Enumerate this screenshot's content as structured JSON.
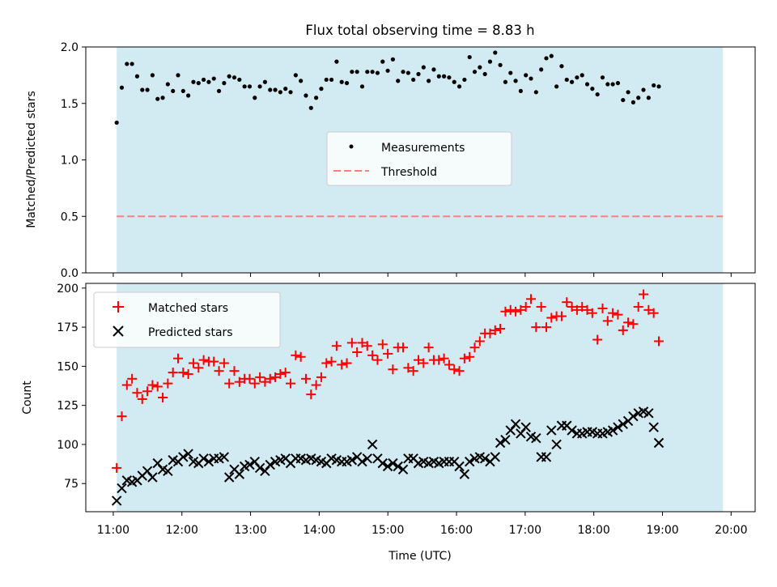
{
  "title": "Flux total observing time = 8.83 h",
  "colors": {
    "shade": "#add8e6",
    "measurement": "#000000",
    "threshold": "#ff7f7f",
    "matched": "#ff0000",
    "predicted": "#000000"
  },
  "chart_data": [
    {
      "type": "scatter",
      "ylabel": "Matched/Predicted stars",
      "ylim": [
        0,
        2
      ],
      "xlim_hours": [
        10.6,
        20.35
      ],
      "yticks": [
        "0.0",
        "0.5",
        "1.0",
        "1.5",
        "2.0"
      ],
      "shaded_range_hours": [
        11.05,
        19.88
      ],
      "threshold": 0.5,
      "legend": {
        "position": "center",
        "entries": [
          "Measurements",
          "Threshold"
        ]
      },
      "x_start_hours": 11.05,
      "x_step_hours": 0.0745,
      "series": [
        {
          "name": "Measurements",
          "marker": "dot",
          "values": [
            1.33,
            1.64,
            1.85,
            1.85,
            1.74,
            1.62,
            1.62,
            1.75,
            1.54,
            1.55,
            1.67,
            1.61,
            1.75,
            1.61,
            1.57,
            1.69,
            1.68,
            1.71,
            1.69,
            1.72,
            1.61,
            1.68,
            1.74,
            1.73,
            1.71,
            1.65,
            1.65,
            1.55,
            1.65,
            1.69,
            1.62,
            1.62,
            1.6,
            1.63,
            1.6,
            1.75,
            1.7,
            1.57,
            1.46,
            1.55,
            1.63,
            1.71,
            1.71,
            1.87,
            1.69,
            1.68,
            1.78,
            1.78,
            1.65,
            1.78,
            1.78,
            1.77,
            1.87,
            1.79,
            1.89,
            1.7,
            1.78,
            1.77,
            1.71,
            1.76,
            1.82,
            1.7,
            1.8,
            1.74,
            1.74,
            1.73,
            1.69,
            1.65,
            1.71,
            1.91,
            1.78,
            1.82,
            1.76,
            1.87,
            1.95,
            1.84,
            1.69,
            1.77,
            1.7,
            1.61,
            1.75,
            1.72,
            1.6,
            1.8,
            1.9,
            1.92,
            1.65,
            1.83,
            1.71,
            1.69,
            1.73,
            1.75,
            1.67,
            1.63,
            1.58,
            1.73,
            1.67,
            1.67,
            1.68,
            1.53,
            1.6,
            1.51,
            1.55,
            1.62,
            1.55,
            1.66,
            1.65
          ]
        }
      ]
    },
    {
      "type": "scatter",
      "xlabel": "Time (UTC)",
      "ylabel": "Count",
      "ylim": [
        57,
        203
      ],
      "xlim_hours": [
        10.6,
        20.35
      ],
      "yticks": [
        "75",
        "100",
        "125",
        "150",
        "175",
        "200"
      ],
      "xticks": [
        "11:00",
        "12:00",
        "13:00",
        "14:00",
        "15:00",
        "16:00",
        "17:00",
        "18:00",
        "19:00",
        "20:00"
      ],
      "shaded_range_hours": [
        11.05,
        19.88
      ],
      "legend": {
        "position": "top-left",
        "entries": [
          "Matched stars",
          "Predicted stars"
        ]
      },
      "x_start_hours": 11.05,
      "x_step_hours": 0.0745,
      "series": [
        {
          "name": "Matched stars",
          "marker": "plus",
          "values": [
            85,
            118,
            138,
            142,
            133,
            129,
            134,
            138,
            137,
            130,
            139,
            146,
            155,
            146,
            145,
            152,
            149,
            154,
            153,
            153,
            147,
            152,
            139,
            147,
            140,
            142,
            142,
            139,
            143,
            140,
            142,
            143,
            145,
            146,
            139,
            157,
            156,
            142,
            132,
            138,
            143,
            152,
            153,
            163,
            151,
            152,
            165,
            159,
            165,
            163,
            157,
            154,
            164,
            158,
            148,
            162,
            162,
            149,
            147,
            154,
            152,
            162,
            154,
            154,
            155,
            151,
            148,
            147,
            155,
            156,
            162,
            166,
            171,
            171,
            173,
            174,
            185,
            186,
            185,
            186,
            188,
            193,
            175,
            188,
            175,
            181,
            182,
            182,
            191,
            188,
            186,
            188,
            186,
            184,
            167,
            187,
            179,
            184,
            183,
            173,
            178,
            177,
            188,
            196,
            186,
            184,
            166
          ]
        },
        {
          "name": "Predicted stars",
          "marker": "x",
          "values": [
            64,
            72,
            77,
            76,
            77,
            80,
            83,
            79,
            88,
            84,
            83,
            90,
            89,
            92,
            94,
            89,
            88,
            91,
            89,
            91,
            91,
            92,
            79,
            84,
            81,
            86,
            87,
            89,
            85,
            83,
            87,
            89,
            90,
            91,
            88,
            91,
            91,
            90,
            91,
            90,
            89,
            88,
            91,
            90,
            89,
            89,
            90,
            92,
            89,
            91,
            100,
            91,
            88,
            86,
            88,
            86,
            84,
            91,
            91,
            88,
            89,
            88,
            89,
            88,
            89,
            89,
            89,
            86,
            81,
            89,
            91,
            92,
            91,
            89,
            92,
            101,
            103,
            109,
            113,
            107,
            111,
            105,
            104,
            92,
            92,
            109,
            100,
            112,
            112,
            109,
            107,
            107,
            108,
            108,
            107,
            107,
            108,
            109,
            111,
            113,
            115,
            118,
            120,
            121,
            120,
            111,
            101
          ]
        }
      ]
    }
  ]
}
